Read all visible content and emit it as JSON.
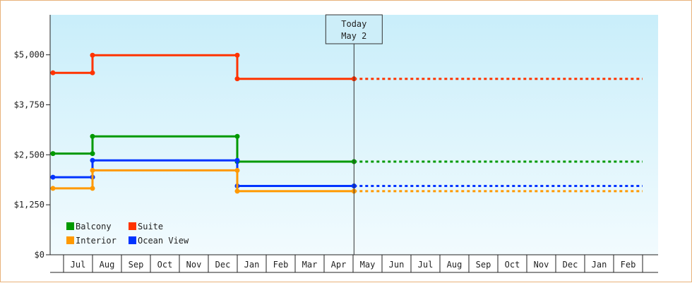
{
  "chart_data": {
    "type": "line",
    "subtype": "step",
    "x_axis": {
      "ticks": [
        "Jul",
        "Aug",
        "Sep",
        "Oct",
        "Nov",
        "Dec",
        "Jan",
        "Feb",
        "Mar",
        "Apr",
        "May",
        "Jun",
        "Jul",
        "Aug",
        "Sep",
        "Oct",
        "Nov",
        "Dec",
        "Jan",
        "Feb"
      ]
    },
    "y_axis": {
      "ticks": [
        "$0",
        "$1,250",
        "$2,500",
        "$3,750",
        "$5,000"
      ],
      "ylim": [
        0,
        6000
      ]
    },
    "grid": false,
    "legend_position": "bottom-left",
    "today_marker": {
      "line1": "Today",
      "line2": "May 2",
      "date": "2025-05-02"
    },
    "series": [
      {
        "name": "Suite",
        "color": "#ff3300",
        "points": [
          {
            "date": "2024-06-20",
            "value": 4550
          },
          {
            "date": "2024-08-01",
            "value": 4550
          },
          {
            "date": "2024-08-01",
            "value": 4990
          },
          {
            "date": "2025-01-01",
            "value": 4990
          },
          {
            "date": "2025-01-01",
            "value": 4400
          },
          {
            "date": "2025-05-02",
            "value": 4400
          }
        ],
        "projection": [
          {
            "date": "2025-05-02",
            "value": 4400
          },
          {
            "date": "2026-03-01",
            "value": 4400
          }
        ]
      },
      {
        "name": "Balcony",
        "color": "#009900",
        "points": [
          {
            "date": "2024-06-20",
            "value": 2530
          },
          {
            "date": "2024-08-01",
            "value": 2530
          },
          {
            "date": "2024-08-01",
            "value": 2960
          },
          {
            "date": "2025-01-01",
            "value": 2960
          },
          {
            "date": "2025-01-01",
            "value": 2330
          },
          {
            "date": "2025-05-02",
            "value": 2330
          }
        ],
        "projection": [
          {
            "date": "2025-05-02",
            "value": 2330
          },
          {
            "date": "2026-03-01",
            "value": 2330
          }
        ]
      },
      {
        "name": "Ocean View",
        "color": "#0033ff",
        "points": [
          {
            "date": "2024-06-20",
            "value": 1940
          },
          {
            "date": "2024-08-01",
            "value": 1940
          },
          {
            "date": "2024-08-01",
            "value": 2360
          },
          {
            "date": "2025-01-01",
            "value": 2360
          },
          {
            "date": "2025-01-01",
            "value": 1720
          },
          {
            "date": "2025-05-02",
            "value": 1720
          }
        ],
        "projection": [
          {
            "date": "2025-05-02",
            "value": 1720
          },
          {
            "date": "2026-03-01",
            "value": 1720
          }
        ]
      },
      {
        "name": "Interior",
        "color": "#ff9900",
        "points": [
          {
            "date": "2024-06-20",
            "value": 1660
          },
          {
            "date": "2024-08-01",
            "value": 1660
          },
          {
            "date": "2024-08-01",
            "value": 2110
          },
          {
            "date": "2025-01-01",
            "value": 2110
          },
          {
            "date": "2025-01-01",
            "value": 1590
          },
          {
            "date": "2025-05-02",
            "value": 1590
          }
        ],
        "projection": [
          {
            "date": "2025-05-02",
            "value": 1590
          },
          {
            "date": "2026-03-01",
            "value": 1590
          }
        ]
      }
    ],
    "legend": [
      {
        "label": "Balcony",
        "color": "#009900"
      },
      {
        "label": "Suite",
        "color": "#ff3300"
      },
      {
        "label": "Interior",
        "color": "#ff9900"
      },
      {
        "label": "Ocean View",
        "color": "#0033ff"
      }
    ]
  }
}
